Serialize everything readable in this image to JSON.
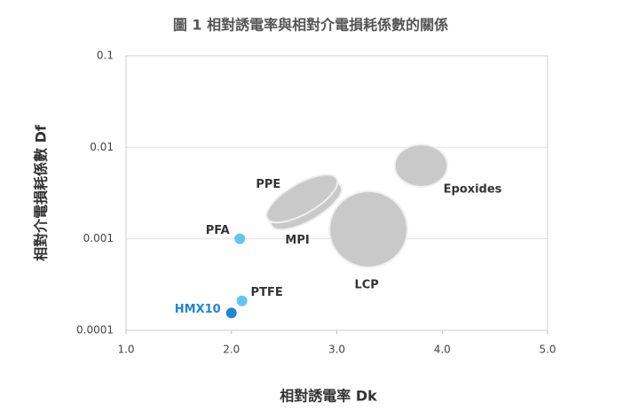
{
  "chart_data": {
    "type": "scatter",
    "title": "圖 1  相對誘電率與相對介電損耗係數的關係",
    "x_label": "相對誘電率  Dk",
    "y_label": "相對介電損耗係數  Df",
    "xlim": [
      1,
      5
    ],
    "xticks": [
      {
        "value": 1,
        "label": "1.0"
      },
      {
        "value": 2,
        "label": "2.0"
      },
      {
        "value": 3,
        "label": "3.0"
      },
      {
        "value": 4,
        "label": "4.0"
      },
      {
        "value": 5,
        "label": "5.0"
      }
    ],
    "ylim": [
      0.0001,
      0.1
    ],
    "yticks": [
      0.1,
      0.01,
      0.001,
      0.0001
    ],
    "log_y": true,
    "grid": true,
    "regions": {
      "names": [
        "MPI",
        "PPE",
        "LCP",
        "Epoxides"
      ],
      "x": [
        2.71,
        2.67,
        3.3,
        3.8
      ],
      "y": [
        0.0023,
        0.00275,
        0.00127,
        0.0063
      ],
      "widths": [
        0.76,
        0.76,
        0.74,
        0.5
      ],
      "heights": [
        0.33,
        0.33,
        0.83,
        0.46
      ],
      "angles": [
        -30,
        -30,
        0,
        0
      ],
      "color": "#c9c9c9"
    },
    "points": {
      "names": [
        "PFA",
        "PTFE",
        "HMX10"
      ],
      "x": [
        2.08,
        2.1,
        2.0
      ],
      "y": [
        0.001,
        0.00021,
        0.000155
      ],
      "colors": [
        "#62c4f0",
        "#62c4f0",
        "#1f86d4"
      ]
    }
  }
}
